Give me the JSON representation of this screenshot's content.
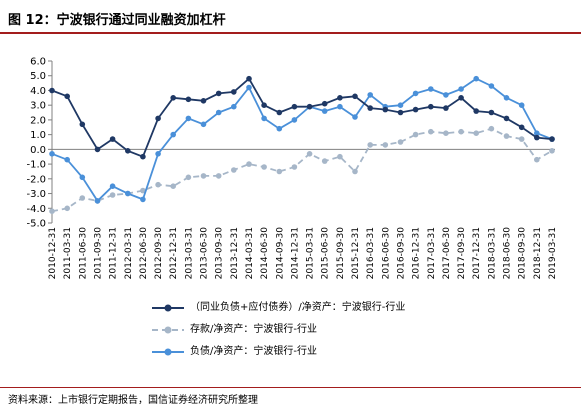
{
  "title": "图 12：宁波银行通过同业融资加杠杆",
  "source": "资料来源：上市银行定期报告，国信证券经济研究所整理",
  "chart_data": {
    "type": "line",
    "categories": [
      "2010-12-31",
      "2011-03-31",
      "2011-06-30",
      "2011-09-30",
      "2011-12-31",
      "2012-03-31",
      "2012-06-30",
      "2012-09-30",
      "2012-12-31",
      "2013-03-31",
      "2013-06-30",
      "2013-09-30",
      "2013-12-31",
      "2014-03-31",
      "2014-06-30",
      "2014-09-30",
      "2014-12-31",
      "2015-03-31",
      "2015-06-30",
      "2015-09-30",
      "2015-12-31",
      "2016-03-31",
      "2016-06-30",
      "2016-09-30",
      "2016-12-31",
      "2017-03-31",
      "2017-06-30",
      "2017-09-30",
      "2017-12-31",
      "2018-03-31",
      "2018-06-30",
      "2018-09-30",
      "2018-12-31",
      "2019-03-31"
    ],
    "ylim": [
      -5.0,
      6.0
    ],
    "yticks": [
      "6.0",
      "5.0",
      "4.0",
      "3.0",
      "2.0",
      "1.0",
      "0.0",
      "-1.0",
      "-2.0",
      "-3.0",
      "-4.0",
      "-5.0"
    ],
    "grid": false,
    "legend_position": "bottom",
    "series": [
      {
        "name": "（同业负债+应付债券）/净资产：宁波银行-行业",
        "color": "#1f3864",
        "style": "solid",
        "values": [
          4.0,
          3.6,
          1.7,
          0.0,
          0.7,
          -0.1,
          -0.5,
          2.1,
          3.5,
          3.4,
          3.3,
          3.8,
          3.9,
          4.8,
          3.0,
          2.5,
          2.9,
          2.9,
          3.1,
          3.5,
          3.6,
          2.8,
          2.7,
          2.5,
          2.7,
          2.9,
          2.8,
          3.5,
          2.6,
          2.5,
          2.1,
          1.5,
          0.8,
          0.7
        ]
      },
      {
        "name": "存款/净资产：宁波银行-行业",
        "color": "#a6b6c8",
        "style": "dashed",
        "values": [
          -4.2,
          -4.0,
          -3.3,
          -3.5,
          -3.1,
          -3.0,
          -2.8,
          -2.4,
          -2.5,
          -1.9,
          -1.8,
          -1.8,
          -1.4,
          -1.0,
          -1.2,
          -1.5,
          -1.2,
          -0.3,
          -0.8,
          -0.5,
          -1.5,
          0.3,
          0.3,
          0.5,
          1.0,
          1.2,
          1.1,
          1.2,
          1.1,
          1.4,
          0.9,
          0.7,
          -0.7,
          -0.1
        ]
      },
      {
        "name": "负债/净资产：宁波银行-行业",
        "color": "#4a90d9",
        "style": "solid",
        "values": [
          -0.3,
          -0.7,
          -1.9,
          -3.5,
          -2.5,
          -3.0,
          -3.4,
          -0.3,
          1.0,
          2.1,
          1.7,
          2.5,
          2.9,
          4.2,
          2.1,
          1.4,
          2.0,
          2.9,
          2.6,
          2.9,
          2.2,
          3.7,
          2.9,
          3.0,
          3.8,
          4.1,
          3.7,
          4.1,
          4.8,
          4.3,
          3.5,
          3.0,
          1.1,
          0.7
        ]
      }
    ]
  }
}
